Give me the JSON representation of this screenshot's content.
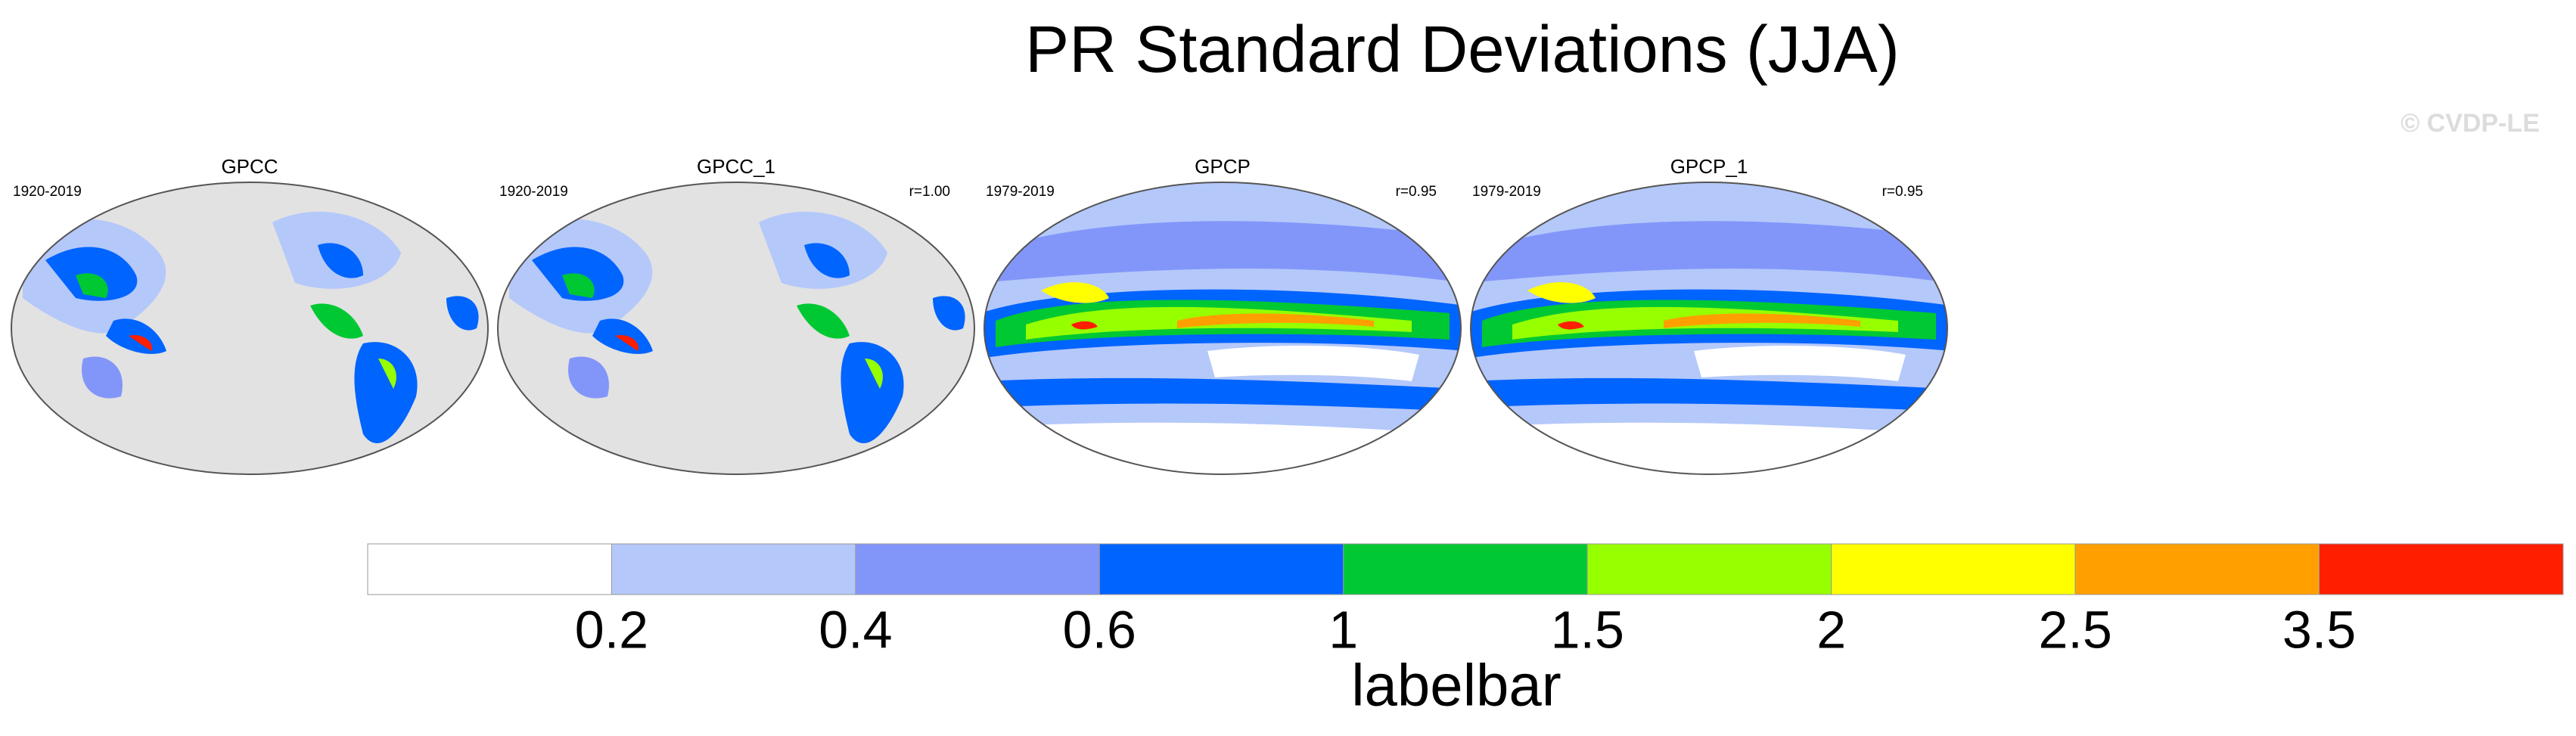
{
  "title": "PR Standard Deviations (JJA)",
  "watermark": "© CVDP-LE",
  "panels": [
    {
      "title": "GPCC",
      "period": "1920-2019",
      "style": "gpcc"
    },
    {
      "title": "GPCC_1",
      "period": "1920-2019",
      "corr": "r=1.00",
      "style": "gpcc"
    },
    {
      "title": "GPCP",
      "period": "1979-2019",
      "corr": "r=0.95",
      "style": "gpcp"
    },
    {
      "title": "GPCP_1",
      "period": "1979-2019",
      "corr": "r=0.95",
      "style": "gpcp"
    }
  ],
  "labelbar": {
    "title": "labelbar",
    "colors": [
      "#ffffff",
      "#b4c8fa",
      "#8296fa",
      "#0064ff",
      "#00c832",
      "#96ff00",
      "#ffff00",
      "#ffa000",
      "#ff1e00"
    ],
    "ticks": [
      0.2,
      0.4,
      0.6,
      1,
      1.5,
      2,
      2.5,
      3.5
    ]
  }
}
